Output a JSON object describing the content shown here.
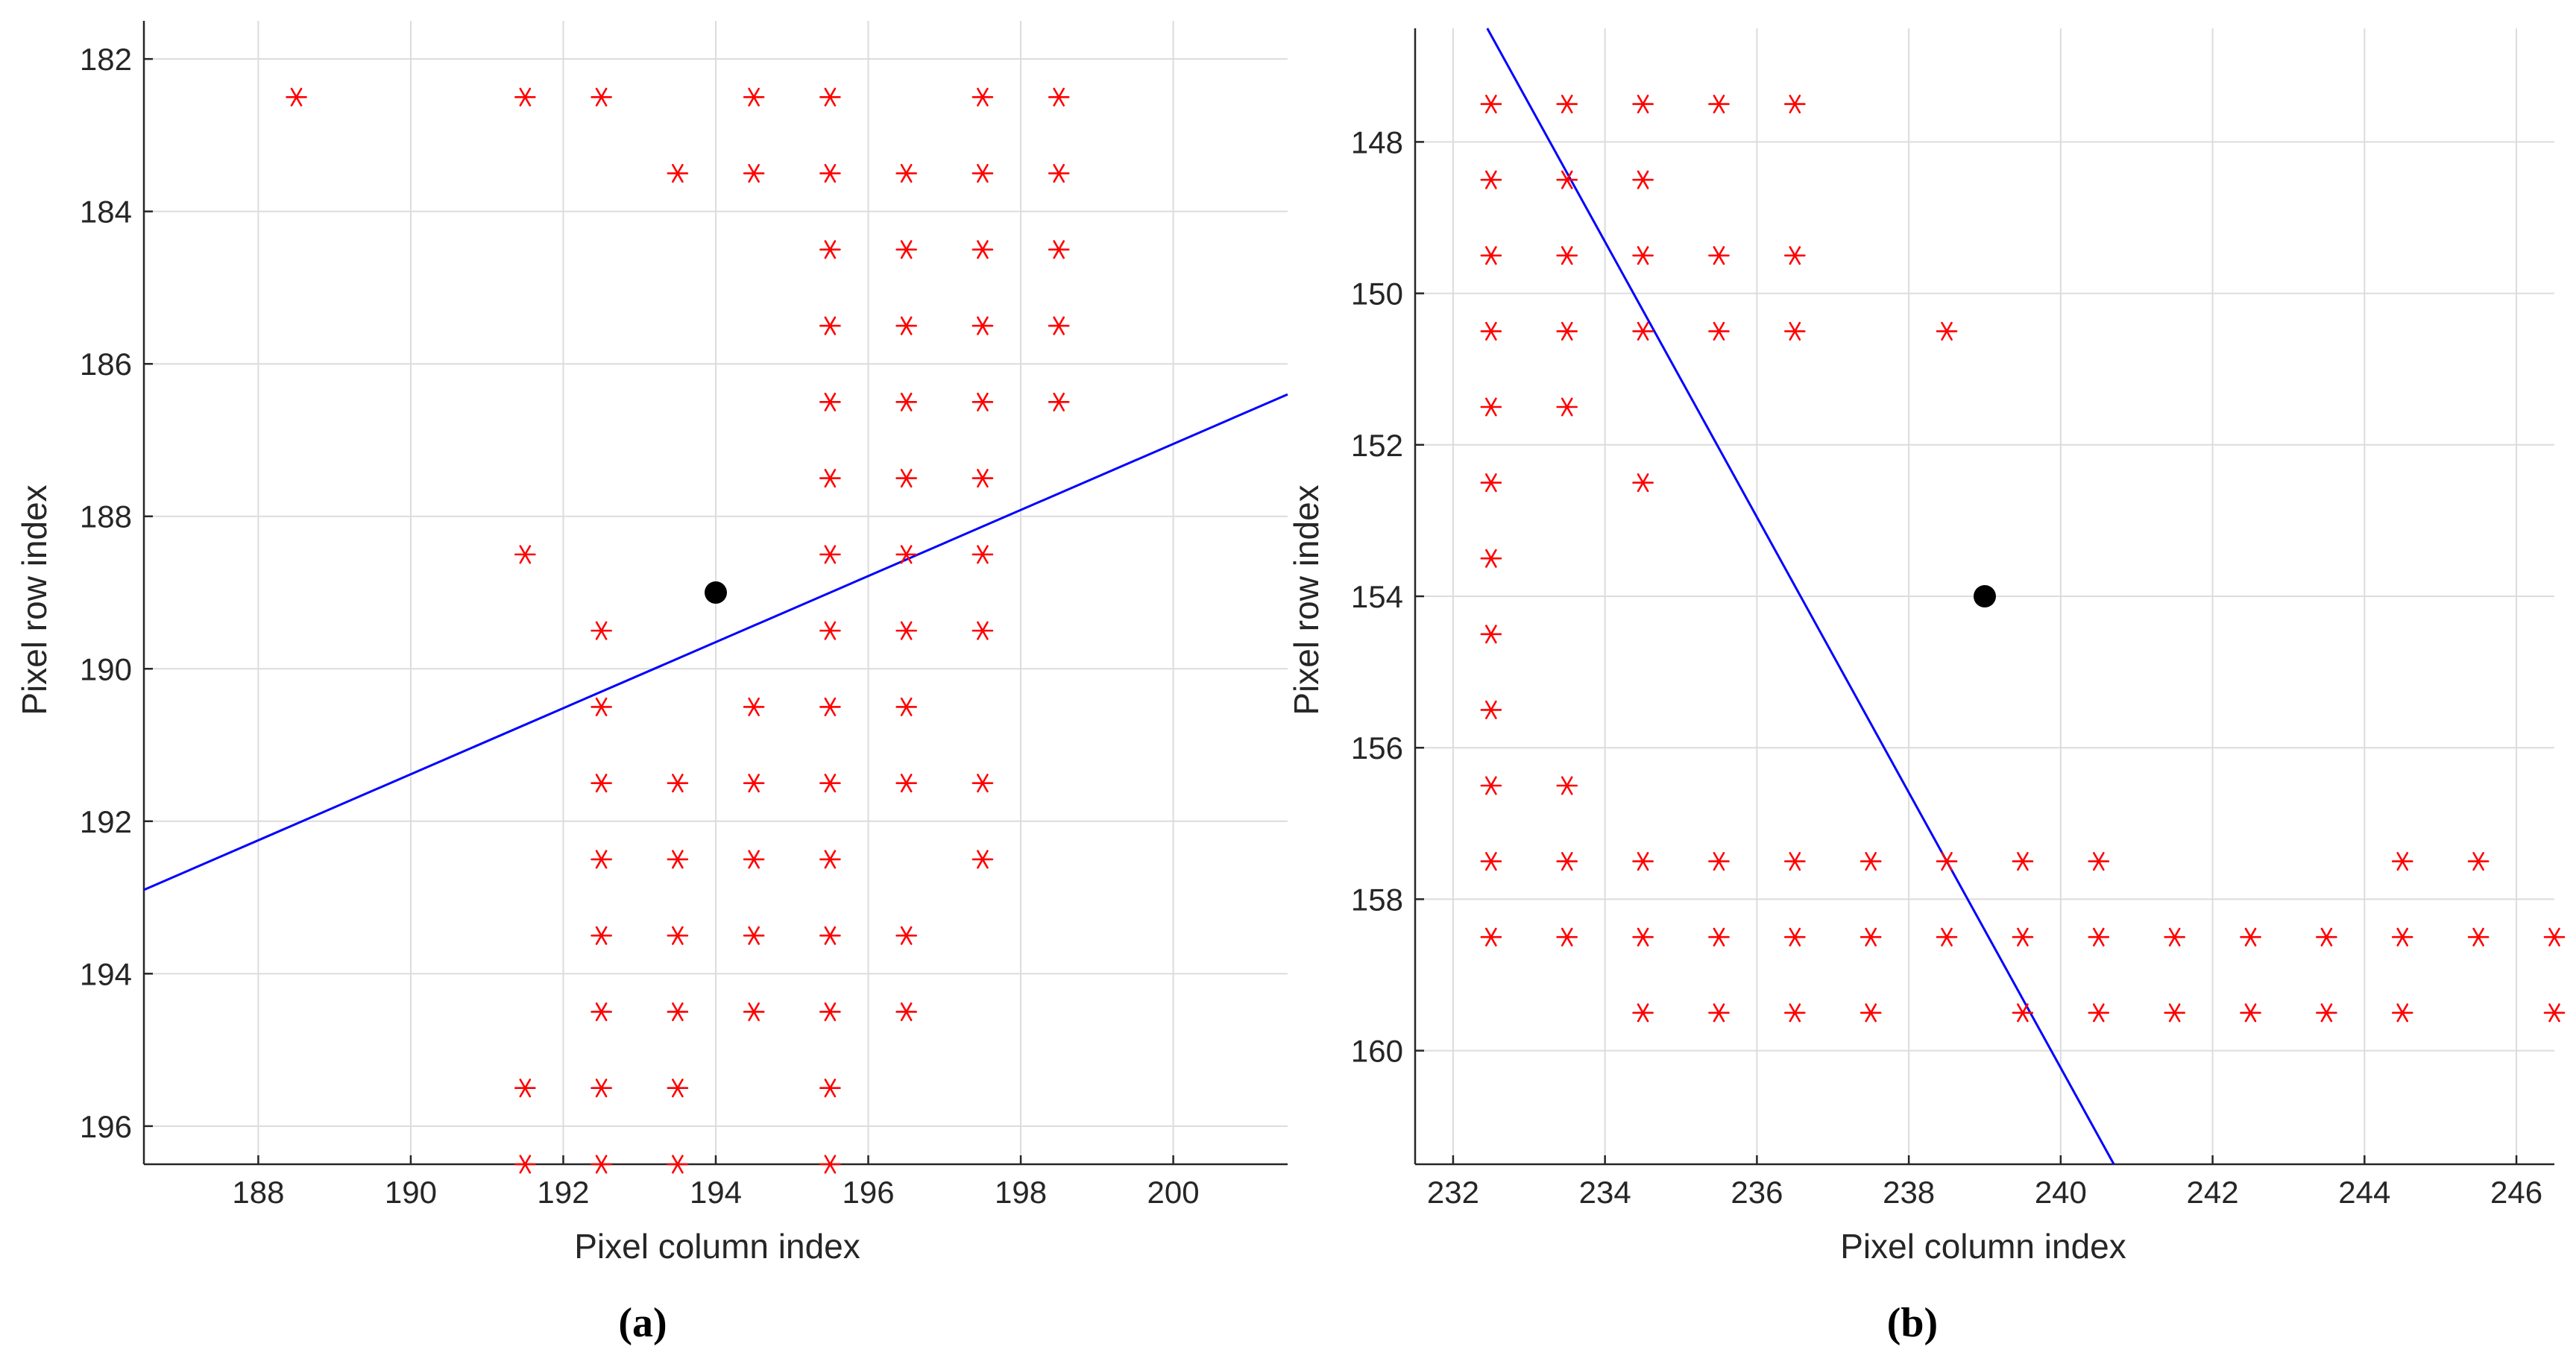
{
  "figure": {
    "colors": {
      "grid": "#dcdcdc",
      "axis": "#262626",
      "marker": "#ff0000",
      "line": "#0000ff",
      "center_point": "#000000",
      "background": "#ffffff"
    }
  },
  "chart_data": [
    {
      "type": "scatter",
      "panel": "a",
      "caption": "(a)",
      "title": "",
      "xlabel": "Pixel column index",
      "ylabel": "Pixel row index",
      "xlim": [
        186.5,
        201.5
      ],
      "ylim": [
        181.5,
        196.5
      ],
      "y_reversed": true,
      "grid": true,
      "xticks": [
        188,
        190,
        192,
        194,
        196,
        198,
        200
      ],
      "xtick_labels": [
        "188",
        "190",
        "192",
        "194",
        "196",
        "198",
        "200"
      ],
      "yticks": [
        182,
        184,
        186,
        188,
        190,
        192,
        194,
        196
      ],
      "ytick_labels": [
        "182",
        "184",
        "186",
        "188",
        "190",
        "192",
        "194",
        "196"
      ],
      "series": [
        {
          "name": "edge pixels",
          "marker": "asterisk",
          "points": [
            [
              188.5,
              182.5
            ],
            [
              191.5,
              182.5
            ],
            [
              192.5,
              182.5
            ],
            [
              194.5,
              182.5
            ],
            [
              195.5,
              182.5
            ],
            [
              197.5,
              182.5
            ],
            [
              198.5,
              182.5
            ],
            [
              193.5,
              183.5
            ],
            [
              194.5,
              183.5
            ],
            [
              195.5,
              183.5
            ],
            [
              196.5,
              183.5
            ],
            [
              197.5,
              183.5
            ],
            [
              198.5,
              183.5
            ],
            [
              195.5,
              184.5
            ],
            [
              196.5,
              184.5
            ],
            [
              197.5,
              184.5
            ],
            [
              198.5,
              184.5
            ],
            [
              195.5,
              185.5
            ],
            [
              196.5,
              185.5
            ],
            [
              197.5,
              185.5
            ],
            [
              198.5,
              185.5
            ],
            [
              195.5,
              186.5
            ],
            [
              196.5,
              186.5
            ],
            [
              197.5,
              186.5
            ],
            [
              198.5,
              186.5
            ],
            [
              195.5,
              187.5
            ],
            [
              196.5,
              187.5
            ],
            [
              197.5,
              187.5
            ],
            [
              191.5,
              188.5
            ],
            [
              195.5,
              188.5
            ],
            [
              196.5,
              188.5
            ],
            [
              197.5,
              188.5
            ],
            [
              192.5,
              189.5
            ],
            [
              195.5,
              189.5
            ],
            [
              196.5,
              189.5
            ],
            [
              197.5,
              189.5
            ],
            [
              192.5,
              190.5
            ],
            [
              194.5,
              190.5
            ],
            [
              195.5,
              190.5
            ],
            [
              196.5,
              190.5
            ],
            [
              192.5,
              191.5
            ],
            [
              193.5,
              191.5
            ],
            [
              194.5,
              191.5
            ],
            [
              195.5,
              191.5
            ],
            [
              196.5,
              191.5
            ],
            [
              197.5,
              191.5
            ],
            [
              192.5,
              192.5
            ],
            [
              193.5,
              192.5
            ],
            [
              194.5,
              192.5
            ],
            [
              195.5,
              192.5
            ],
            [
              197.5,
              192.5
            ],
            [
              192.5,
              193.5
            ],
            [
              193.5,
              193.5
            ],
            [
              194.5,
              193.5
            ],
            [
              195.5,
              193.5
            ],
            [
              196.5,
              193.5
            ],
            [
              192.5,
              194.5
            ],
            [
              193.5,
              194.5
            ],
            [
              194.5,
              194.5
            ],
            [
              195.5,
              194.5
            ],
            [
              196.5,
              194.5
            ],
            [
              191.5,
              195.5
            ],
            [
              192.5,
              195.5
            ],
            [
              193.5,
              195.5
            ],
            [
              195.5,
              195.5
            ],
            [
              191.5,
              196.5
            ],
            [
              192.5,
              196.5
            ],
            [
              193.5,
              196.5
            ],
            [
              195.5,
              196.5
            ]
          ]
        },
        {
          "name": "fitted line",
          "type": "line",
          "points": [
            [
              186.5,
              192.9
            ],
            [
              201.5,
              186.4
            ]
          ]
        },
        {
          "name": "center point",
          "marker": "filled-circle",
          "points": [
            [
              194.0,
              189.0
            ]
          ]
        }
      ]
    },
    {
      "type": "scatter",
      "panel": "b",
      "caption": "(b)",
      "title": "",
      "xlabel": "Pixel column index",
      "ylabel": "Pixel row index",
      "xlim": [
        231.5,
        246.5
      ],
      "ylim": [
        146.5,
        161.5
      ],
      "y_reversed": true,
      "grid": true,
      "xticks": [
        232,
        234,
        236,
        238,
        240,
        242,
        244,
        246
      ],
      "xtick_labels": [
        "232",
        "234",
        "236",
        "238",
        "240",
        "242",
        "244",
        "246"
      ],
      "yticks": [
        148,
        150,
        152,
        154,
        156,
        158,
        160
      ],
      "ytick_labels": [
        "148",
        "150",
        "152",
        "154",
        "156",
        "158",
        "160"
      ],
      "series": [
        {
          "name": "edge pixels",
          "marker": "asterisk",
          "points": [
            [
              232.5,
              147.5
            ],
            [
              233.5,
              147.5
            ],
            [
              234.5,
              147.5
            ],
            [
              235.5,
              147.5
            ],
            [
              236.5,
              147.5
            ],
            [
              232.5,
              148.5
            ],
            [
              233.5,
              148.5
            ],
            [
              234.5,
              148.5
            ],
            [
              232.5,
              149.5
            ],
            [
              233.5,
              149.5
            ],
            [
              234.5,
              149.5
            ],
            [
              235.5,
              149.5
            ],
            [
              236.5,
              149.5
            ],
            [
              232.5,
              150.5
            ],
            [
              233.5,
              150.5
            ],
            [
              234.5,
              150.5
            ],
            [
              235.5,
              150.5
            ],
            [
              236.5,
              150.5
            ],
            [
              238.5,
              150.5
            ],
            [
              232.5,
              151.5
            ],
            [
              233.5,
              151.5
            ],
            [
              232.5,
              152.5
            ],
            [
              234.5,
              152.5
            ],
            [
              232.5,
              153.5
            ],
            [
              232.5,
              154.5
            ],
            [
              232.5,
              155.5
            ],
            [
              232.5,
              156.5
            ],
            [
              233.5,
              156.5
            ],
            [
              232.5,
              157.5
            ],
            [
              233.5,
              157.5
            ],
            [
              234.5,
              157.5
            ],
            [
              235.5,
              157.5
            ],
            [
              236.5,
              157.5
            ],
            [
              237.5,
              157.5
            ],
            [
              238.5,
              157.5
            ],
            [
              239.5,
              157.5
            ],
            [
              240.5,
              157.5
            ],
            [
              244.5,
              157.5
            ],
            [
              245.5,
              157.5
            ],
            [
              232.5,
              158.5
            ],
            [
              233.5,
              158.5
            ],
            [
              234.5,
              158.5
            ],
            [
              235.5,
              158.5
            ],
            [
              236.5,
              158.5
            ],
            [
              237.5,
              158.5
            ],
            [
              238.5,
              158.5
            ],
            [
              239.5,
              158.5
            ],
            [
              240.5,
              158.5
            ],
            [
              241.5,
              158.5
            ],
            [
              242.5,
              158.5
            ],
            [
              243.5,
              158.5
            ],
            [
              244.5,
              158.5
            ],
            [
              245.5,
              158.5
            ],
            [
              246.5,
              158.5
            ],
            [
              234.5,
              159.5
            ],
            [
              235.5,
              159.5
            ],
            [
              236.5,
              159.5
            ],
            [
              237.5,
              159.5
            ],
            [
              239.5,
              159.5
            ],
            [
              240.5,
              159.5
            ],
            [
              241.5,
              159.5
            ],
            [
              242.5,
              159.5
            ],
            [
              243.5,
              159.5
            ],
            [
              244.5,
              159.5
            ],
            [
              246.5,
              159.5
            ]
          ]
        },
        {
          "name": "fitted line",
          "type": "line",
          "points": [
            [
              232.45,
              146.5
            ],
            [
              240.7,
              161.5
            ]
          ]
        },
        {
          "name": "center point",
          "marker": "filled-circle",
          "points": [
            [
              239.0,
              154.0
            ]
          ]
        }
      ]
    }
  ]
}
